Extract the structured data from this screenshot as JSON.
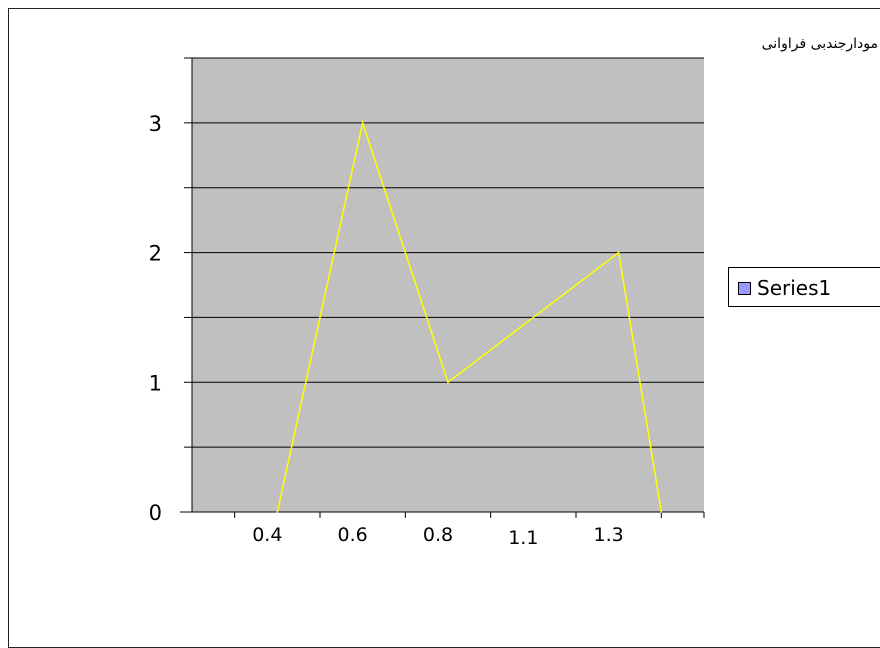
{
  "chart_data": {
    "type": "line",
    "title": "مودارجندبی فراوانی",
    "categories": [
      "0.4",
      "0.6",
      "0.8",
      "1.1",
      "1.3"
    ],
    "x_tick_labels": [
      "0.4",
      "0.6",
      "0.8",
      "1.1",
      "1.3"
    ],
    "y_tick_labels": [
      "0",
      "1",
      "2",
      "3"
    ],
    "series": [
      {
        "name": "Series1",
        "x": [
          0.4,
          0.6,
          0.8,
          1.0,
          1.2,
          1.3
        ],
        "values": [
          0,
          3,
          1,
          1.5,
          2,
          0
        ],
        "color": "#ffff00"
      }
    ],
    "legend_swatch_color": "#9999ff",
    "plot_background": "#c0c0c0",
    "ylim": [
      0,
      3.5
    ],
    "xlim": [
      0.2,
      1.4
    ],
    "grid": true,
    "legend_position": "right"
  }
}
